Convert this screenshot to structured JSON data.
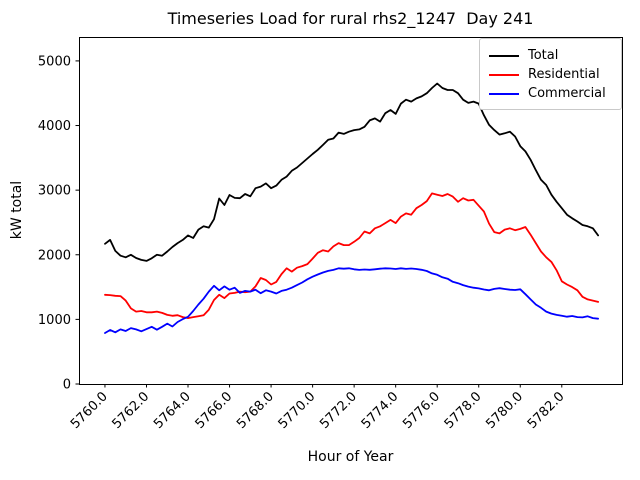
{
  "figure": {
    "background": "#ffffff"
  },
  "chart_data": {
    "type": "line",
    "title": "Timeseries Load for rural rhs2_1247  Day 241",
    "xlabel": "Hour of Year",
    "ylabel": "kW total",
    "grid": false,
    "legend_position": "upper right",
    "xlim": [
      5758.75,
      5784.9
    ],
    "ylim": [
      0,
      5370
    ],
    "x_tick_values": [
      5760,
      5762,
      5764,
      5766,
      5768,
      5770,
      5772,
      5774,
      5776,
      5778,
      5780,
      5782
    ],
    "x_tick_labels": [
      "5760.0",
      "5762.0",
      "5764.0",
      "5766.0",
      "5768.0",
      "5770.0",
      "5772.0",
      "5774.0",
      "5776.0",
      "5778.0",
      "5780.0",
      "5782.0"
    ],
    "y_tick_values": [
      0,
      1000,
      2000,
      3000,
      4000,
      5000
    ],
    "y_tick_labels": [
      "0",
      "1000",
      "2000",
      "3000",
      "4000",
      "5000"
    ],
    "x": [
      5760.0,
      5760.25,
      5760.5,
      5760.75,
      5761.0,
      5761.25,
      5761.5,
      5761.75,
      5762.0,
      5762.25,
      5762.5,
      5762.75,
      5763.0,
      5763.25,
      5763.5,
      5763.75,
      5764.0,
      5764.25,
      5764.5,
      5764.75,
      5765.0,
      5765.25,
      5765.5,
      5765.75,
      5766.0,
      5766.25,
      5766.5,
      5766.75,
      5767.0,
      5767.25,
      5767.5,
      5767.75,
      5768.0,
      5768.25,
      5768.5,
      5768.75,
      5769.0,
      5769.25,
      5769.5,
      5769.75,
      5770.0,
      5770.25,
      5770.5,
      5770.75,
      5771.0,
      5771.25,
      5771.5,
      5771.75,
      5772.0,
      5772.25,
      5772.5,
      5772.75,
      5773.0,
      5773.25,
      5773.5,
      5773.75,
      5774.0,
      5774.25,
      5774.5,
      5774.75,
      5775.0,
      5775.25,
      5775.5,
      5775.75,
      5776.0,
      5776.25,
      5776.5,
      5776.75,
      5777.0,
      5777.25,
      5777.5,
      5777.75,
      5778.0,
      5778.25,
      5778.5,
      5778.75,
      5779.0,
      5779.25,
      5779.5,
      5779.75,
      5780.0,
      5780.25,
      5780.5,
      5780.75,
      5781.0,
      5781.25,
      5781.5,
      5781.75,
      5782.0,
      5782.25,
      5782.5,
      5782.75,
      5783.0,
      5783.25,
      5783.5,
      5783.75
    ],
    "series": [
      {
        "name": "Total",
        "color": "#000000",
        "values": [
          2170,
          2230,
          2060,
          1985,
          1960,
          2000,
          1950,
          1920,
          1905,
          1945,
          2000,
          1985,
          2050,
          2120,
          2180,
          2230,
          2300,
          2260,
          2390,
          2440,
          2420,
          2550,
          2870,
          2770,
          2925,
          2880,
          2875,
          2940,
          2905,
          3030,
          3055,
          3105,
          3030,
          3070,
          3160,
          3210,
          3300,
          3350,
          3420,
          3490,
          3560,
          3625,
          3700,
          3780,
          3800,
          3890,
          3870,
          3905,
          3930,
          3940,
          3980,
          4080,
          4110,
          4060,
          4190,
          4240,
          4180,
          4340,
          4400,
          4370,
          4420,
          4450,
          4500,
          4580,
          4650,
          4580,
          4550,
          4550,
          4500,
          4400,
          4350,
          4370,
          4340,
          4160,
          4010,
          3930,
          3860,
          3880,
          3905,
          3830,
          3680,
          3600,
          3470,
          3310,
          3160,
          3080,
          2930,
          2820,
          2720,
          2620,
          2565,
          2515,
          2460,
          2440,
          2410,
          2300
        ]
      },
      {
        "name": "Residential",
        "color": "#ff0000",
        "values": [
          1380,
          1375,
          1365,
          1360,
          1290,
          1170,
          1120,
          1130,
          1110,
          1110,
          1120,
          1100,
          1070,
          1055,
          1065,
          1035,
          1020,
          1035,
          1050,
          1065,
          1150,
          1300,
          1380,
          1330,
          1400,
          1410,
          1430,
          1420,
          1430,
          1510,
          1640,
          1610,
          1540,
          1580,
          1700,
          1790,
          1740,
          1800,
          1825,
          1855,
          1940,
          2030,
          2070,
          2050,
          2130,
          2180,
          2150,
          2150,
          2200,
          2260,
          2360,
          2330,
          2410,
          2440,
          2490,
          2540,
          2490,
          2590,
          2640,
          2620,
          2720,
          2770,
          2830,
          2950,
          2930,
          2910,
          2940,
          2900,
          2820,
          2875,
          2840,
          2850,
          2760,
          2670,
          2480,
          2350,
          2330,
          2390,
          2410,
          2380,
          2400,
          2430,
          2310,
          2180,
          2050,
          1960,
          1890,
          1760,
          1590,
          1540,
          1500,
          1450,
          1350,
          1310,
          1290,
          1270
        ]
      },
      {
        "name": "Commercial",
        "color": "#0000ff",
        "values": [
          790,
          835,
          800,
          845,
          820,
          865,
          845,
          815,
          850,
          885,
          840,
          885,
          935,
          890,
          960,
          1005,
          1040,
          1130,
          1230,
          1320,
          1430,
          1520,
          1450,
          1510,
          1460,
          1490,
          1410,
          1440,
          1430,
          1460,
          1405,
          1450,
          1430,
          1400,
          1440,
          1460,
          1490,
          1530,
          1570,
          1620,
          1660,
          1695,
          1725,
          1750,
          1765,
          1790,
          1785,
          1790,
          1775,
          1765,
          1772,
          1768,
          1775,
          1785,
          1790,
          1788,
          1780,
          1790,
          1782,
          1788,
          1780,
          1768,
          1748,
          1712,
          1690,
          1652,
          1630,
          1582,
          1560,
          1530,
          1508,
          1490,
          1480,
          1462,
          1450,
          1472,
          1482,
          1470,
          1460,
          1455,
          1465,
          1390,
          1310,
          1230,
          1180,
          1120,
          1090,
          1070,
          1055,
          1042,
          1052,
          1036,
          1030,
          1048,
          1020,
          1010
        ]
      }
    ]
  }
}
